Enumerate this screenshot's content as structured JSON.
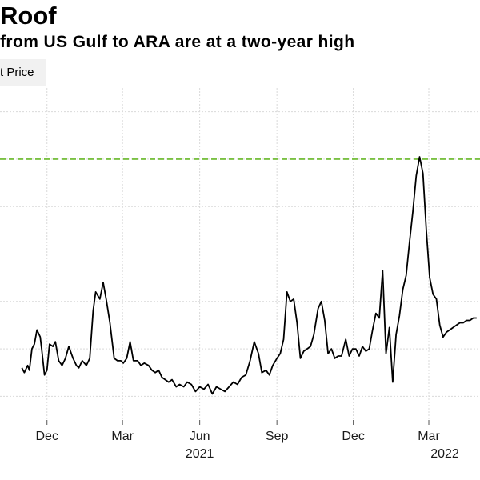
{
  "title": "Roof",
  "subtitle": "from US Gulf to ARA are at a two-year high",
  "legend_label": "t Price",
  "colors": {
    "series": "#000000",
    "reference": "#7ac143",
    "grid": "#d9d9d9"
  },
  "chart_data": {
    "type": "line",
    "title": "Roof",
    "subtitle": "from US Gulf to ARA are at a two-year high",
    "xlabel": "",
    "ylabel": "",
    "grid": true,
    "legend": "top-left",
    "x_tick_labels": [
      "Dec",
      "Mar",
      "Jun",
      "Sep",
      "Dec",
      "Mar"
    ],
    "year_labels": [
      "2021",
      "2022"
    ],
    "series": [
      {
        "name": "",
        "x": [
          "2020-11-01",
          "2020-11-04",
          "2020-11-08",
          "2020-11-10",
          "2020-11-13",
          "2020-11-16",
          "2020-11-19",
          "2020-11-23",
          "2020-11-25",
          "2020-11-28",
          "2020-12-01",
          "2020-12-04",
          "2020-12-08",
          "2020-12-11",
          "2020-12-15",
          "2020-12-19",
          "2020-12-23",
          "2020-12-27",
          "2021-01-01",
          "2021-01-05",
          "2021-01-08",
          "2021-01-12",
          "2021-01-17",
          "2021-01-21",
          "2021-01-25",
          "2021-01-28",
          "2021-02-02",
          "2021-02-06",
          "2021-02-10",
          "2021-02-14",
          "2021-02-19",
          "2021-02-23",
          "2021-02-27",
          "2021-03-02",
          "2021-03-06",
          "2021-03-10",
          "2021-03-14",
          "2021-03-19",
          "2021-03-23",
          "2021-03-27",
          "2021-04-01",
          "2021-04-05",
          "2021-04-09",
          "2021-04-13",
          "2021-04-17",
          "2021-04-21",
          "2021-04-25",
          "2021-04-29",
          "2021-05-04",
          "2021-05-08",
          "2021-05-13",
          "2021-05-17",
          "2021-05-22",
          "2021-05-27",
          "2021-06-01",
          "2021-06-06",
          "2021-06-11",
          "2021-06-16",
          "2021-06-21",
          "2021-06-26",
          "2021-07-01",
          "2021-07-06",
          "2021-07-11",
          "2021-07-16",
          "2021-07-21",
          "2021-07-26",
          "2021-07-31",
          "2021-08-05",
          "2021-08-10",
          "2021-08-14",
          "2021-08-19",
          "2021-08-23",
          "2021-08-27",
          "2021-09-01",
          "2021-09-05",
          "2021-09-09",
          "2021-09-13",
          "2021-09-17",
          "2021-09-21",
          "2021-09-25",
          "2021-09-29",
          "2021-10-03",
          "2021-10-07",
          "2021-10-11",
          "2021-10-15",
          "2021-10-20",
          "2021-10-24",
          "2021-10-28",
          "2021-11-01",
          "2021-11-05",
          "2021-11-09",
          "2021-11-13",
          "2021-11-17",
          "2021-11-22",
          "2021-11-26",
          "2021-11-30",
          "2021-12-04",
          "2021-12-08",
          "2021-12-12",
          "2021-12-16",
          "2021-12-20",
          "2021-12-24",
          "2021-12-28",
          "2022-01-01",
          "2022-01-05",
          "2022-01-09",
          "2022-01-13",
          "2022-01-17",
          "2022-01-21",
          "2022-01-25",
          "2022-01-29",
          "2022-02-02",
          "2022-02-06",
          "2022-02-10",
          "2022-02-14",
          "2022-02-18",
          "2022-02-22",
          "2022-02-26",
          "2022-03-02",
          "2022-03-06",
          "2022-03-10",
          "2022-03-14",
          "2022-03-18",
          "2022-03-22",
          "2022-03-26",
          "2022-03-30",
          "2022-04-03",
          "2022-04-07",
          "2022-04-11",
          "2022-04-15",
          "2022-04-19",
          "2022-04-23",
          "2022-04-27"
        ],
        "values": [
          5.2,
          5.0,
          5.3,
          5.1,
          6.0,
          6.2,
          6.8,
          6.5,
          5.9,
          4.9,
          5.1,
          6.2,
          6.1,
          6.3,
          5.5,
          5.3,
          5.6,
          6.1,
          5.6,
          5.3,
          5.2,
          5.5,
          5.3,
          5.6,
          7.6,
          8.4,
          8.1,
          8.8,
          8.0,
          7.1,
          5.6,
          5.5,
          5.5,
          5.4,
          5.6,
          6.3,
          5.5,
          5.5,
          5.3,
          5.4,
          5.3,
          5.1,
          5.0,
          5.1,
          4.8,
          4.7,
          4.6,
          4.7,
          4.4,
          4.5,
          4.4,
          4.6,
          4.5,
          4.2,
          4.4,
          4.3,
          4.5,
          4.1,
          4.4,
          4.3,
          4.2,
          4.4,
          4.6,
          4.5,
          4.8,
          4.9,
          5.5,
          6.3,
          5.8,
          5.0,
          5.1,
          4.9,
          5.3,
          5.6,
          5.8,
          6.4,
          8.4,
          8.0,
          8.1,
          7.1,
          5.6,
          5.9,
          6.0,
          6.1,
          6.6,
          7.7,
          8.0,
          7.2,
          5.8,
          6.0,
          5.6,
          5.7,
          5.7,
          6.4,
          5.7,
          6.0,
          6.0,
          5.7,
          6.1,
          5.9,
          6.0,
          6.8,
          7.5,
          7.3,
          9.3,
          5.8,
          6.9,
          4.6,
          6.6,
          7.4,
          8.5,
          9.1,
          10.5,
          11.8,
          13.3,
          14.1,
          13.4,
          11.0,
          9.0,
          8.3,
          8.1,
          7.0,
          6.5,
          6.7,
          6.8,
          6.9,
          7.0,
          7.1,
          7.1,
          7.2,
          7.2,
          7.3,
          7.3
        ]
      }
    ],
    "reference_line": 14.0,
    "ylim": [
      3,
      17
    ]
  }
}
